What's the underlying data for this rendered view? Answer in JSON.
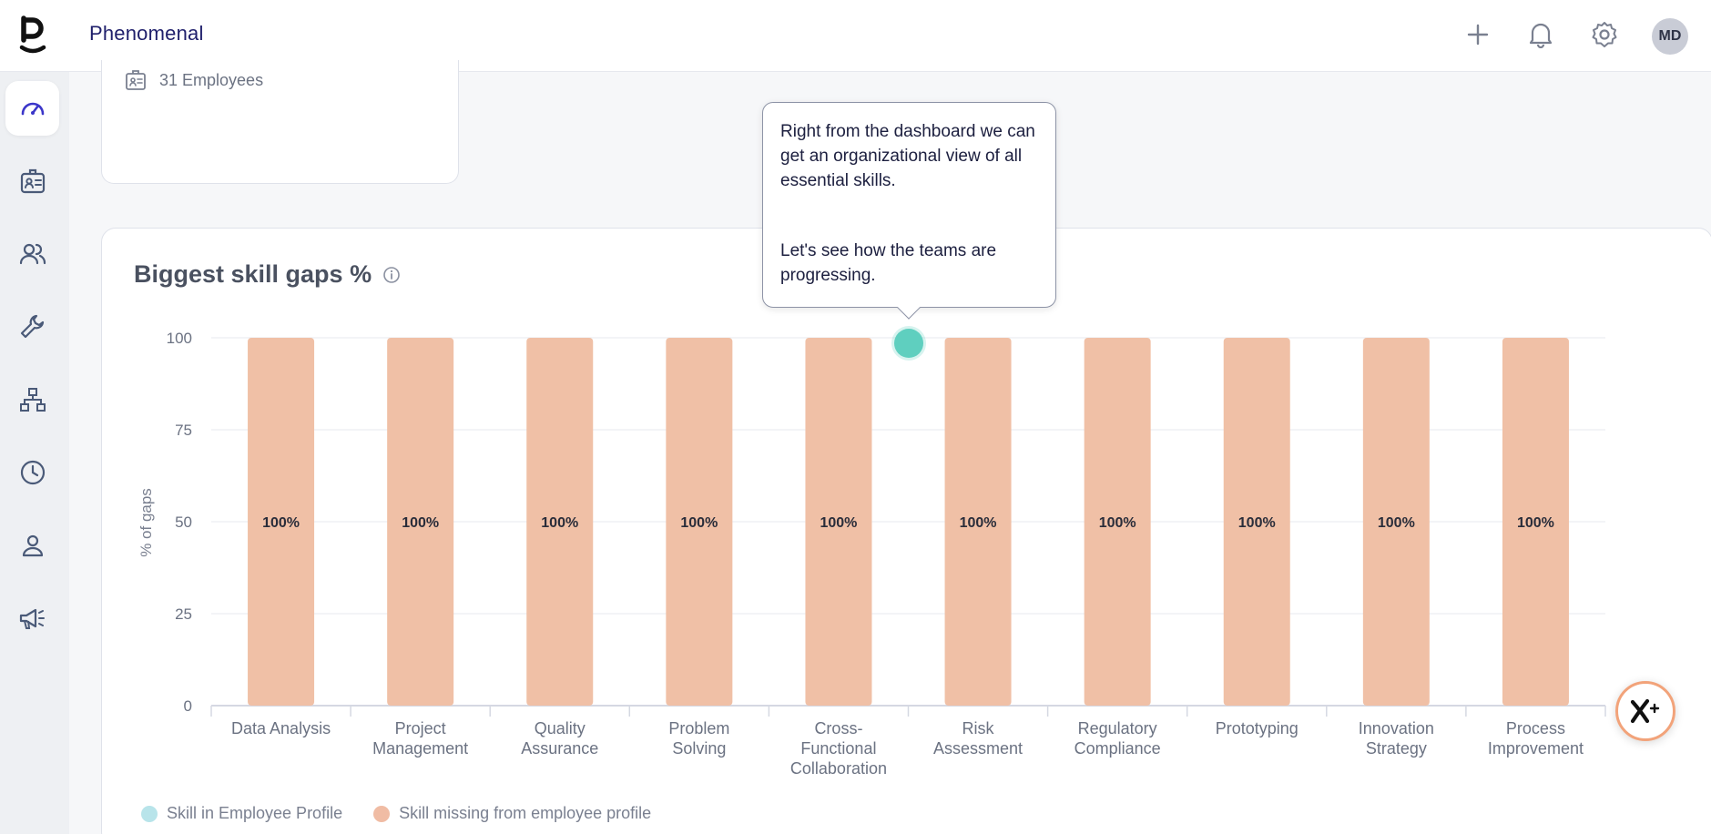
{
  "app": {
    "brand": "Phenomenal"
  },
  "header": {
    "avatar_initials": "MD",
    "actions": [
      "add-icon",
      "bell-icon",
      "gear-icon"
    ]
  },
  "sidebar": {
    "items": [
      {
        "icon": "dashboard-icon",
        "active": true
      },
      {
        "icon": "id-badge-icon",
        "active": false
      },
      {
        "icon": "users-icon",
        "active": false
      },
      {
        "icon": "wrench-icon",
        "active": false
      },
      {
        "icon": "org-chart-icon",
        "active": false
      },
      {
        "icon": "clock-icon",
        "active": false
      },
      {
        "icon": "user-icon",
        "active": false
      },
      {
        "icon": "megaphone-icon",
        "active": false
      }
    ]
  },
  "employees_card": {
    "label": "31 Employees"
  },
  "tooltip": {
    "line1": "Right from the dashboard we can get an organizational view of all essential skills.",
    "line2": "Let's see how the teams are progressing."
  },
  "legend": {
    "in_profile": "Skill in Employee Profile",
    "missing": "Skill missing from employee profile"
  },
  "colors": {
    "bar": "#f0c0a6",
    "in_profile": "#b8e4ea",
    "missing": "#f0bca4",
    "hotspot": "#5fcfbf",
    "brand": "#1f1f6b"
  },
  "chart_data": {
    "type": "bar",
    "title": "Biggest skill gaps %",
    "xlabel": "",
    "ylabel": "% of gaps",
    "ylim": [
      0,
      100
    ],
    "yticks": [
      0,
      25,
      50,
      75,
      100
    ],
    "categories": [
      "Data Analysis",
      "Project Management",
      "Quality Assurance",
      "Problem Solving",
      "Cross-Functional Collaboration",
      "Risk Assessment",
      "Regulatory Compliance",
      "Prototyping",
      "Innovation Strategy",
      "Process Improvement"
    ],
    "category_lines": [
      [
        "Data Analysis"
      ],
      [
        "Project",
        "Management"
      ],
      [
        "Quality",
        "Assurance"
      ],
      [
        "Problem",
        "Solving"
      ],
      [
        "Cross-",
        "Functional",
        "Collaboration"
      ],
      [
        "Risk",
        "Assessment"
      ],
      [
        "Regulatory",
        "Compliance"
      ],
      [
        "Prototyping"
      ],
      [
        "Innovation",
        "Strategy"
      ],
      [
        "Process",
        "Improvement"
      ]
    ],
    "values": [
      100,
      100,
      100,
      100,
      100,
      100,
      100,
      100,
      100,
      100
    ],
    "value_labels": [
      "100%",
      "100%",
      "100%",
      "100%",
      "100%",
      "100%",
      "100%",
      "100%",
      "100%",
      "100%"
    ],
    "grid": true,
    "legend_position": "bottom-left"
  }
}
